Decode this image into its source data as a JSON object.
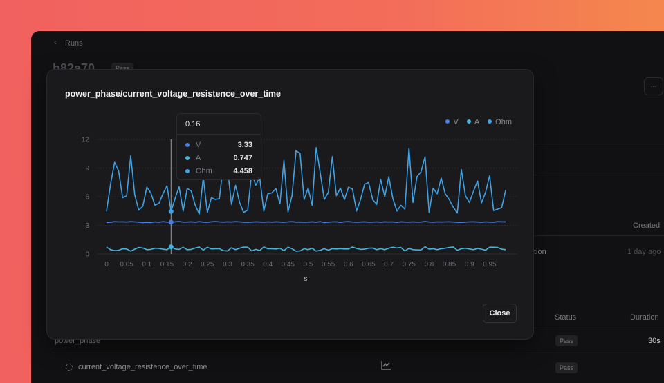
{
  "page": {
    "breadcrumb": "Runs",
    "run_id": "b82a70",
    "run_status": "Pass",
    "more_label": "···",
    "table1": {
      "col_created": "Created",
      "row_name_fragment": "tion",
      "row_created": "1 day ago"
    },
    "table2": {
      "col_status": "Status",
      "col_duration": "Duration",
      "rows": [
        {
          "name": "power_phase",
          "status": "Pass",
          "duration": "30s"
        },
        {
          "name": "current_voltage_resistence_over_time",
          "status": "Pass",
          "duration": ""
        }
      ]
    }
  },
  "modal": {
    "title": "power_phase/current_voltage_resistence_over_time",
    "close_label": "Close"
  },
  "tooltip": {
    "x": "0.16",
    "rows": [
      {
        "label": "V",
        "value": "3.33",
        "color": "#4a80e8"
      },
      {
        "label": "A",
        "value": "0.747",
        "color": "#45b5dc"
      },
      {
        "label": "Ohm",
        "value": "4.458",
        "color": "#3fa2e6"
      }
    ]
  },
  "chart_data": {
    "type": "line",
    "xlabel": "s",
    "ylabel": "",
    "xlim": [
      0,
      0.99
    ],
    "ylim": [
      0,
      12
    ],
    "yticks": [
      0,
      3,
      6,
      9,
      12
    ],
    "xticks": [
      0,
      0.05,
      0.1,
      0.15,
      0.2,
      0.25,
      0.3,
      0.35,
      0.4,
      0.45,
      0.5,
      0.55,
      0.6,
      0.65,
      0.7,
      0.75,
      0.8,
      0.85,
      0.9,
      0.95
    ],
    "xticklabels": [
      "0",
      "0.05",
      "0.1",
      "0.15",
      "0.2",
      "0.25",
      "0.3",
      "0.35",
      "0.4",
      "0.45",
      "0.5",
      "0.55",
      "0.6",
      "0.65",
      "0.7",
      "0.75",
      "0.8",
      "0.85",
      "0.9",
      "0.95"
    ],
    "x_step": 0.01,
    "grid": true,
    "legend": "top-right",
    "hover_x": 0.16,
    "series": [
      {
        "name": "V",
        "color": "#4a80e8",
        "values": [
          3.3,
          3.32,
          3.38,
          3.36,
          3.37,
          3.35,
          3.38,
          3.36,
          3.34,
          3.3,
          3.31,
          3.3,
          3.36,
          3.32,
          3.38,
          3.34,
          3.33,
          3.37,
          3.39,
          3.34,
          3.35,
          3.37,
          3.33,
          3.38,
          3.34,
          3.32,
          3.37,
          3.4,
          3.36,
          3.34,
          3.37,
          3.35,
          3.38,
          3.36,
          3.33,
          3.32,
          3.34,
          3.37,
          3.35,
          3.33,
          3.36,
          3.34,
          3.37,
          3.35,
          3.32,
          3.36,
          3.38,
          3.34,
          3.35,
          3.33,
          3.34,
          3.37,
          3.33,
          3.38,
          3.3,
          3.33,
          3.36,
          3.37,
          3.31,
          3.37,
          3.38,
          3.35,
          3.33,
          3.35,
          3.37,
          3.33,
          3.34,
          3.36,
          3.33,
          3.37,
          3.35,
          3.36,
          3.31,
          3.37,
          3.35,
          3.34,
          3.36,
          3.34,
          3.35,
          3.4,
          3.35,
          3.33,
          3.36,
          3.35,
          3.36,
          3.37,
          3.35,
          3.32,
          3.31,
          3.34,
          3.36,
          3.37,
          3.35,
          3.32,
          3.36,
          3.34,
          3.33,
          3.38,
          3.37,
          3.37
        ]
      },
      {
        "name": "A",
        "color": "#45b5dc",
        "values": [
          0.72,
          0.45,
          0.35,
          0.38,
          0.55,
          0.52,
          0.3,
          0.5,
          0.68,
          0.62,
          0.45,
          0.48,
          0.6,
          0.58,
          0.5,
          0.45,
          0.747,
          0.52,
          0.48,
          0.7,
          0.45,
          0.48,
          0.62,
          0.72,
          0.4,
          0.7,
          0.52,
          0.55,
          0.55,
          0.35,
          0.32,
          0.65,
          0.45,
          0.6,
          0.72,
          0.7,
          0.32,
          0.48,
          0.36,
          0.72,
          0.55,
          0.55,
          0.52,
          0.6,
          0.35,
          0.7,
          0.55,
          0.3,
          0.32,
          0.55,
          0.45,
          0.6,
          0.3,
          0.38,
          0.55,
          0.4,
          0.55,
          0.52,
          0.56,
          0.52,
          0.52,
          0.72,
          0.58,
          0.48,
          0.5,
          0.6,
          0.62,
          0.45,
          0.55,
          0.45,
          0.6,
          0.7,
          0.62,
          0.68,
          0.32,
          0.58,
          0.45,
          0.43,
          0.42,
          0.75,
          0.5,
          0.55,
          0.45,
          0.55,
          0.6,
          0.68,
          0.72,
          0.38,
          0.55,
          0.6,
          0.52,
          0.45,
          0.58,
          0.5,
          0.4,
          0.7,
          0.7,
          0.68,
          0.5,
          0.45
        ]
      },
      {
        "name": "Ohm",
        "color": "#3fa2e6",
        "values": [
          4.47,
          7.3,
          9.6,
          8.7,
          5.9,
          6.1,
          10.3,
          6.2,
          4.6,
          5.0,
          7.0,
          6.4,
          5.1,
          5.3,
          6.3,
          7.15,
          4.458,
          5.8,
          7.05,
          4.5,
          6.86,
          6.6,
          5.1,
          4.2,
          8.0,
          4.35,
          5.9,
          5.7,
          5.8,
          9.5,
          9.0,
          5.2,
          7.2,
          5.4,
          4.35,
          4.6,
          8.5,
          7.2,
          8.0,
          4.5,
          6.3,
          6.4,
          6.85,
          5.25,
          9.8,
          4.4,
          6.1,
          10.8,
          10.55,
          5.7,
          6.9,
          5.1,
          11.15,
          8.5,
          5.7,
          6.45,
          10.2,
          6.1,
          6.9,
          5.7,
          7.0,
          6.8,
          4.5,
          5.7,
          7.3,
          7.5,
          5.7,
          5.2,
          7.8,
          6.0,
          8.1,
          5.85,
          4.5,
          5.1,
          4.7,
          11.1,
          5.4,
          8.1,
          8.6,
          10.2,
          4.35,
          6.9,
          6.3,
          7.95,
          6.3,
          5.7,
          4.9,
          4.3,
          8.85,
          6.1,
          5.4,
          6.55,
          7.65,
          5.35,
          6.45,
          8.2,
          4.55,
          4.7,
          4.85,
          6.7
        ]
      }
    ]
  }
}
